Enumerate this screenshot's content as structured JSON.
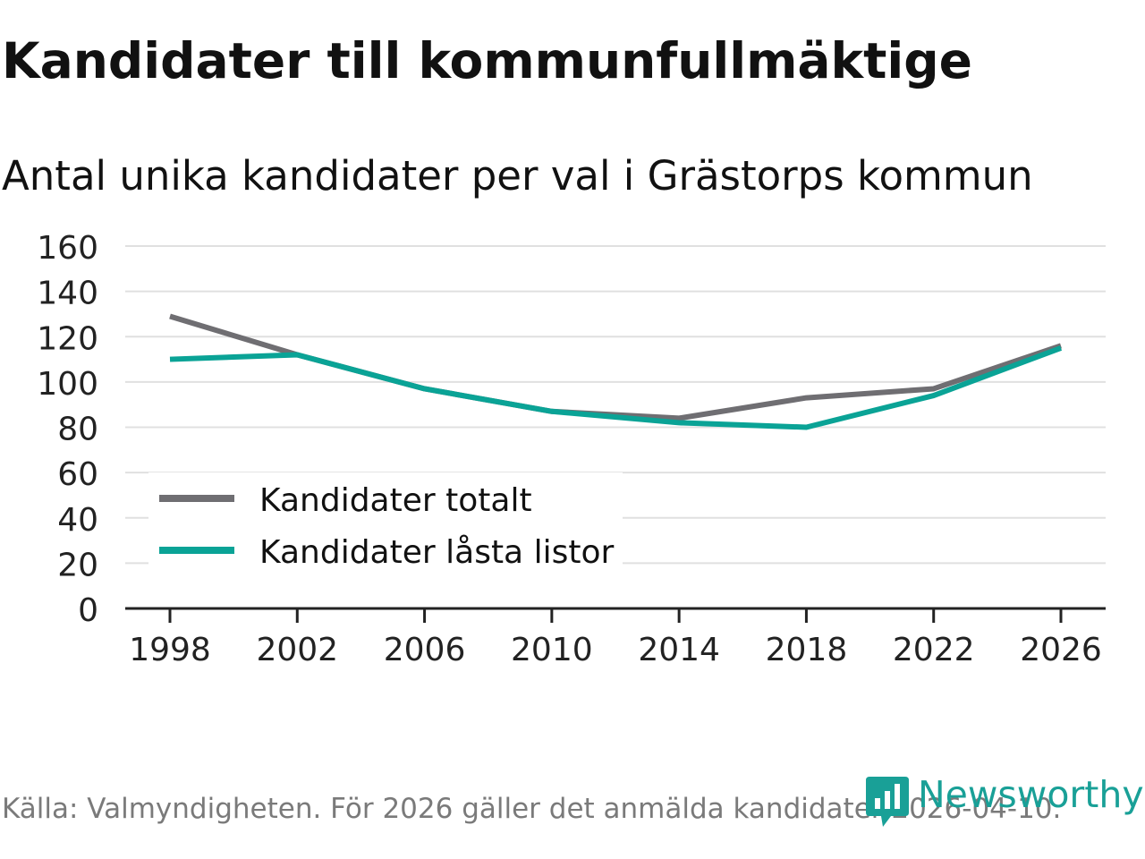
{
  "title": "Kandidater till kommunfullmäktige",
  "subtitle": "Antal unika kandidater per val i Grästorps kommun",
  "source": "Källa: Valmyndigheten. För 2026 gäller det anmälda kandidater 2026-04-10.",
  "brand": {
    "name": "Newsworthy",
    "icon": "newsworthy-logo-icon",
    "color": "#19a097"
  },
  "chart_data": {
    "type": "line",
    "title": "Kandidater till kommunfullmäktige",
    "subtitle": "Antal unika kandidater per val i Grästorps kommun",
    "xlabel": "",
    "ylabel": "",
    "x": [
      1998,
      2002,
      2006,
      2010,
      2014,
      2018,
      2022,
      2026
    ],
    "x_tick_labels": [
      "1998",
      "2002",
      "2006",
      "2010",
      "2014",
      "2018",
      "2022",
      "2026"
    ],
    "ylim": [
      0,
      160
    ],
    "y_ticks": [
      0,
      20,
      40,
      60,
      80,
      100,
      120,
      140,
      160
    ],
    "y_tick_labels": [
      "0",
      "20",
      "40",
      "60",
      "80",
      "100",
      "120",
      "140",
      "160"
    ],
    "grid": true,
    "legend_position": "bottom-left",
    "series": [
      {
        "name": "Kandidater totalt",
        "color": "#6f6e72",
        "values": [
          129,
          112,
          97,
          87,
          84,
          93,
          97,
          116
        ]
      },
      {
        "name": "Kandidater låsta listor",
        "color": "#0aa396",
        "values": [
          110,
          112,
          97,
          87,
          82,
          80,
          94,
          115
        ]
      }
    ]
  }
}
